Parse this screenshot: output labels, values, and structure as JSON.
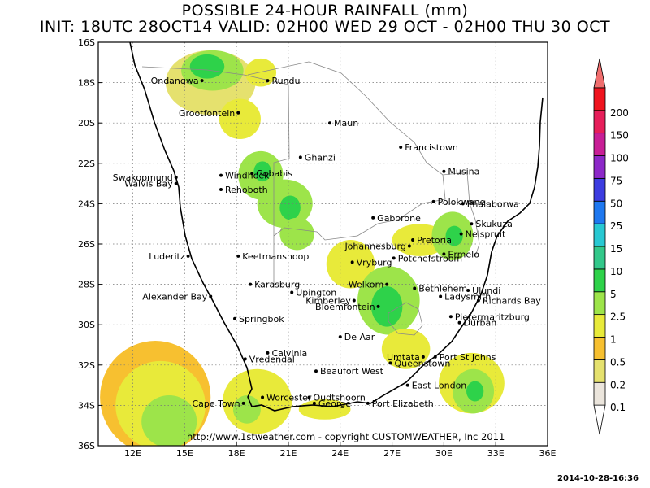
{
  "title_line1": "POSSIBLE 24-HOUR  RAINFALL (mm)",
  "title_line2": "INIT: 18UTC 28OCT14  VALID: 02H00 WED 29 OCT - 02H00 THU 30 OCT",
  "credit": "http://www.1stweather.com - copyright CUSTOMWEATHER, Inc 2011",
  "timestamp": "2014-10-28-16:36",
  "map": {
    "lon_range": [
      10,
      36
    ],
    "lat_range": [
      -36,
      -16
    ],
    "lon_ticks": [
      {
        "v": 12,
        "label": "12E"
      },
      {
        "v": 15,
        "label": "15E"
      },
      {
        "v": 18,
        "label": "18E"
      },
      {
        "v": 21,
        "label": "21E"
      },
      {
        "v": 24,
        "label": "24E"
      },
      {
        "v": 27,
        "label": "27E"
      },
      {
        "v": 30,
        "label": "30E"
      },
      {
        "v": 33,
        "label": "33E"
      },
      {
        "v": 36,
        "label": "36E"
      }
    ],
    "lat_ticks": [
      {
        "v": -16,
        "label": "16S"
      },
      {
        "v": -18,
        "label": "18S"
      },
      {
        "v": -20,
        "label": "20S"
      },
      {
        "v": -22,
        "label": "22S"
      },
      {
        "v": -24,
        "label": "24S"
      },
      {
        "v": -26,
        "label": "26S"
      },
      {
        "v": -28,
        "label": "28S"
      },
      {
        "v": -30,
        "label": "30S"
      },
      {
        "v": -32,
        "label": "32S"
      },
      {
        "v": -34,
        "label": "34S"
      },
      {
        "v": -36,
        "label": "36S"
      }
    ],
    "cities": [
      {
        "name": "Ondangwa",
        "lon": 16.0,
        "lat": -17.9
      },
      {
        "name": "Rundu",
        "lon": 19.8,
        "lat": -17.9
      },
      {
        "name": "Grootfontein",
        "lon": 18.1,
        "lat": -19.5
      },
      {
        "name": "Maun",
        "lon": 23.4,
        "lat": -20.0
      },
      {
        "name": "Francistown",
        "lon": 27.5,
        "lat": -21.2
      },
      {
        "name": "Ghanzi",
        "lon": 21.7,
        "lat": -21.7
      },
      {
        "name": "Swakopmund",
        "lon": 14.5,
        "lat": -22.7
      },
      {
        "name": "Walvis Bay",
        "lon": 14.5,
        "lat": -23.0
      },
      {
        "name": "Windhoek",
        "lon": 17.1,
        "lat": -22.6
      },
      {
        "name": "Gobabis",
        "lon": 18.9,
        "lat": -22.5
      },
      {
        "name": "Rehoboth",
        "lon": 17.1,
        "lat": -23.3
      },
      {
        "name": "Musina",
        "lon": 30.0,
        "lat": -22.4
      },
      {
        "name": "Polokwane",
        "lon": 29.4,
        "lat": -23.9
      },
      {
        "name": "Phalaborwa",
        "lon": 31.1,
        "lat": -24.0
      },
      {
        "name": "Gaborone",
        "lon": 25.9,
        "lat": -24.7
      },
      {
        "name": "Skukuza",
        "lon": 31.6,
        "lat": -25.0
      },
      {
        "name": "Nelspruit",
        "lon": 31.0,
        "lat": -25.5
      },
      {
        "name": "Pretoria",
        "lon": 28.2,
        "lat": -25.8
      },
      {
        "name": "Johannesburg",
        "lon": 28.0,
        "lat": -26.1
      },
      {
        "name": "Ermelo",
        "lon": 30.0,
        "lat": -26.5
      },
      {
        "name": "Luderitz",
        "lon": 15.2,
        "lat": -26.6
      },
      {
        "name": "Keetmanshoop",
        "lon": 18.1,
        "lat": -26.6
      },
      {
        "name": "Vryburg",
        "lon": 24.7,
        "lat": -26.9
      },
      {
        "name": "Potchefstroom",
        "lon": 27.1,
        "lat": -26.7
      },
      {
        "name": "Karasburg",
        "lon": 18.8,
        "lat": -28.0
      },
      {
        "name": "Welkom",
        "lon": 26.7,
        "lat": -28.0
      },
      {
        "name": "Ulundi",
        "lon": 31.4,
        "lat": -28.3
      },
      {
        "name": "Bethlehem",
        "lon": 28.3,
        "lat": -28.2
      },
      {
        "name": "Upington",
        "lon": 21.2,
        "lat": -28.4
      },
      {
        "name": "Ladysmith",
        "lon": 29.8,
        "lat": -28.6
      },
      {
        "name": "Kimberley",
        "lon": 24.8,
        "lat": -28.8
      },
      {
        "name": "Alexander Bay",
        "lon": 16.5,
        "lat": -28.6
      },
      {
        "name": "Richards Bay",
        "lon": 32.0,
        "lat": -28.8
      },
      {
        "name": "Bloemfontein",
        "lon": 26.2,
        "lat": -29.1
      },
      {
        "name": "Pietermaritzburg",
        "lon": 30.4,
        "lat": -29.6
      },
      {
        "name": "Springbok",
        "lon": 17.9,
        "lat": -29.7
      },
      {
        "name": "Durban",
        "lon": 30.9,
        "lat": -29.9
      },
      {
        "name": "De Aar",
        "lon": 24.0,
        "lat": -30.6
      },
      {
        "name": "Calvinia",
        "lon": 19.8,
        "lat": -31.4
      },
      {
        "name": "Vredendal",
        "lon": 18.5,
        "lat": -31.7
      },
      {
        "name": "Umtata",
        "lon": 28.8,
        "lat": -31.6
      },
      {
        "name": "Port St Johns",
        "lon": 29.5,
        "lat": -31.6
      },
      {
        "name": "Queenstown",
        "lon": 26.9,
        "lat": -31.9
      },
      {
        "name": "Beaufort West",
        "lon": 22.6,
        "lat": -32.3
      },
      {
        "name": "East London",
        "lon": 27.9,
        "lat": -33.0
      },
      {
        "name": "Worcester",
        "lon": 19.5,
        "lat": -33.6
      },
      {
        "name": "Oudtshoorn",
        "lon": 22.2,
        "lat": -33.6
      },
      {
        "name": "Cape Town",
        "lon": 18.4,
        "lat": -33.9
      },
      {
        "name": "George",
        "lon": 22.5,
        "lat": -33.9
      },
      {
        "name": "Port Elizabeth",
        "lon": 25.6,
        "lat": -33.9
      }
    ]
  },
  "legend": {
    "levels": [
      "0.1",
      "0.2",
      "0.5",
      "1",
      "2.5",
      "5",
      "10",
      "15",
      "25",
      "50",
      "75",
      "100",
      "150",
      "200"
    ],
    "colors": [
      "#ffffff",
      "#ebe5dc",
      "#e5e16e",
      "#f7c030",
      "#e8ea3a",
      "#9de44a",
      "#2ed24a",
      "#32c88a",
      "#28c8d2",
      "#1e78f0",
      "#3c3ce0",
      "#8c28c8",
      "#c81e96",
      "#e61e5a",
      "#f0141e",
      "#f06e6e"
    ]
  },
  "rain_areas": [
    {
      "level": 2,
      "lon": 16.5,
      "lat": -18.0,
      "rx": 2.6,
      "ry": 1.6
    },
    {
      "level": 5,
      "lon": 16.6,
      "lat": -17.4,
      "rx": 1.8,
      "ry": 1.0
    },
    {
      "level": 6,
      "lon": 16.3,
      "lat": -17.2,
      "rx": 1.0,
      "ry": 0.6
    },
    {
      "level": 4,
      "lon": 18.2,
      "lat": -19.8,
      "rx": 1.2,
      "ry": 1.0
    },
    {
      "level": 4,
      "lon": 19.4,
      "lat": -17.5,
      "rx": 0.9,
      "ry": 0.7
    },
    {
      "level": 5,
      "lon": 19.4,
      "lat": -22.6,
      "rx": 1.3,
      "ry": 1.2
    },
    {
      "level": 6,
      "lon": 19.5,
      "lat": -22.4,
      "rx": 0.5,
      "ry": 0.5
    },
    {
      "level": 5,
      "lon": 20.8,
      "lat": -24.0,
      "rx": 1.6,
      "ry": 1.2
    },
    {
      "level": 6,
      "lon": 21.1,
      "lat": -24.2,
      "rx": 0.6,
      "ry": 0.6
    },
    {
      "level": 5,
      "lon": 21.5,
      "lat": -25.5,
      "rx": 1.0,
      "ry": 0.8
    },
    {
      "level": 4,
      "lon": 24.6,
      "lat": -27.0,
      "rx": 1.4,
      "ry": 1.2
    },
    {
      "level": 5,
      "lon": 26.8,
      "lat": -28.8,
      "rx": 1.8,
      "ry": 1.7
    },
    {
      "level": 6,
      "lon": 26.7,
      "lat": -29.1,
      "rx": 0.9,
      "ry": 1.0
    },
    {
      "level": 4,
      "lon": 28.6,
      "lat": -25.8,
      "rx": 1.6,
      "ry": 0.8
    },
    {
      "level": 5,
      "lon": 30.5,
      "lat": -25.6,
      "rx": 1.2,
      "ry": 1.2
    },
    {
      "level": 6,
      "lon": 30.6,
      "lat": -25.6,
      "rx": 0.5,
      "ry": 0.5
    },
    {
      "level": 4,
      "lon": 27.8,
      "lat": -31.2,
      "rx": 1.4,
      "ry": 1.0
    },
    {
      "level": 4,
      "lon": 31.6,
      "lat": -32.9,
      "rx": 1.9,
      "ry": 1.5
    },
    {
      "level": 5,
      "lon": 31.7,
      "lat": -33.3,
      "rx": 1.2,
      "ry": 1.1
    },
    {
      "level": 6,
      "lon": 31.8,
      "lat": -33.3,
      "rx": 0.5,
      "ry": 0.5
    },
    {
      "level": 3,
      "lon": 13.3,
      "lat": -33.6,
      "rx": 3.2,
      "ry": 2.8
    },
    {
      "level": 4,
      "lon": 13.6,
      "lat": -34.0,
      "rx": 2.6,
      "ry": 2.2
    },
    {
      "level": 5,
      "lon": 14.1,
      "lat": -34.8,
      "rx": 1.6,
      "ry": 1.3
    },
    {
      "level": 4,
      "lon": 19.2,
      "lat": -33.8,
      "rx": 2.0,
      "ry": 1.6
    },
    {
      "level": 5,
      "lon": 18.6,
      "lat": -34.2,
      "rx": 0.8,
      "ry": 0.7
    },
    {
      "level": 4,
      "lon": 23.1,
      "lat": -34.2,
      "rx": 1.5,
      "ry": 0.5
    }
  ]
}
